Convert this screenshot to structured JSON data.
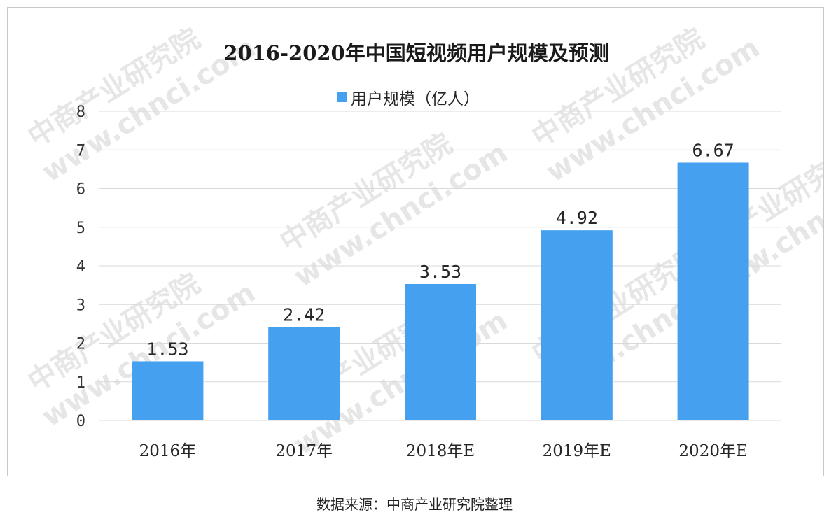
{
  "chart_data": {
    "type": "bar",
    "title": "2016-2020年中国短视频用户规模及预测",
    "legend": {
      "label": "用户规模（亿人）",
      "position": "top-center"
    },
    "categories": [
      "2016年",
      "2017年",
      "2018年E",
      "2019年E",
      "2020年E"
    ],
    "series": [
      {
        "name": "用户规模（亿人）",
        "values": [
          1.53,
          2.42,
          3.53,
          4.92,
          6.67
        ]
      }
    ],
    "ylim": [
      0,
      8
    ],
    "yticks": [
      0,
      1,
      2,
      3,
      4,
      5,
      6,
      7,
      8
    ],
    "grid": true,
    "xlabel": "",
    "ylabel": ""
  },
  "colors": {
    "bar": "#45a0f0",
    "grid": "#d9d9d9",
    "watermark": "#e6e6e6"
  },
  "watermark": {
    "url": "www.chnci.com",
    "name": "中商产业研究院"
  },
  "source_note": "数据来源：中商产业研究院整理"
}
